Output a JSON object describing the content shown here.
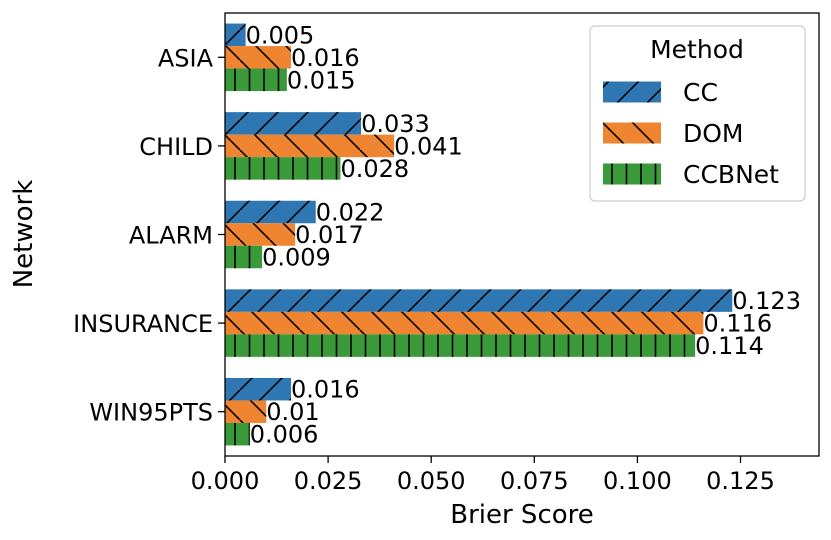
{
  "chart_data": {
    "type": "bar",
    "orientation": "horizontal",
    "title": "",
    "xlabel": "Brier Score",
    "ylabel": "Network",
    "xlim": [
      0,
      0.143
    ],
    "x_ticks": [
      0.0,
      0.025,
      0.05,
      0.075,
      0.1,
      0.125
    ],
    "x_tick_labels": [
      "0.000",
      "0.025",
      "0.050",
      "0.075",
      "0.100",
      "0.125"
    ],
    "categories": [
      "ASIA",
      "CHILD",
      "ALARM",
      "INSURANCE",
      "WIN95PTS"
    ],
    "series": [
      {
        "name": "CC",
        "values": [
          0.005,
          0.033,
          0.022,
          0.123,
          0.016
        ],
        "labels": [
          "0.005",
          "0.033",
          "0.022",
          "0.123",
          "0.016"
        ],
        "color": "#2f77b3",
        "hatch": "forward-slash"
      },
      {
        "name": "DOM",
        "values": [
          0.016,
          0.041,
          0.017,
          0.116,
          0.01
        ],
        "labels": [
          "0.016",
          "0.041",
          "0.017",
          "0.116",
          "0.01"
        ],
        "color": "#ef8431",
        "hatch": "back-slash"
      },
      {
        "name": "CCBNet",
        "values": [
          0.015,
          0.028,
          0.009,
          0.114,
          0.006
        ],
        "labels": [
          "0.015",
          "0.028",
          "0.009",
          "0.114",
          "0.006"
        ],
        "color": "#3a9a3a",
        "hatch": "vertical"
      }
    ],
    "legend": {
      "title": "Method",
      "position": "upper-right"
    },
    "grid": false
  }
}
